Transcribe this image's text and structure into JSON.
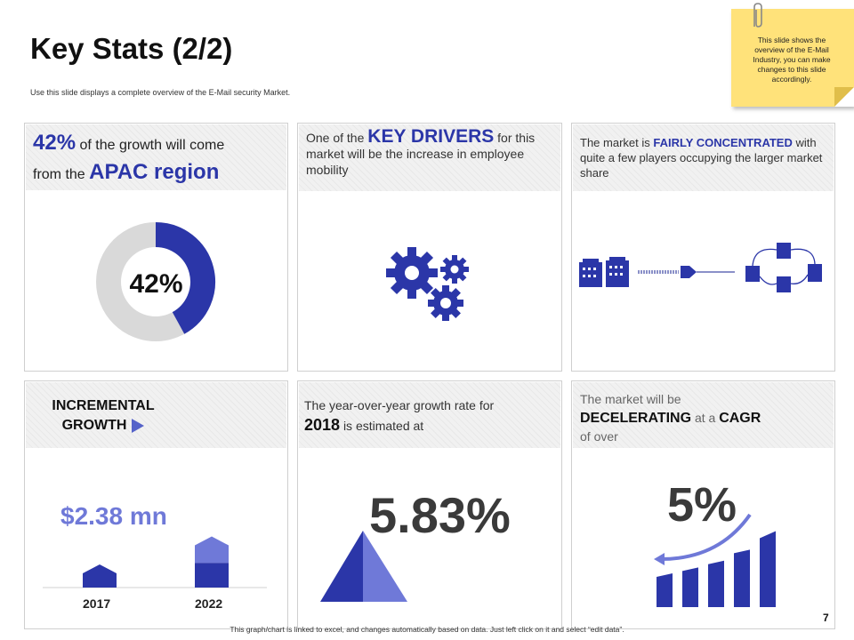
{
  "slide": {
    "title": "Key Stats (2/2)",
    "subtitle": "Use this slide displays a complete overview of the E-Mail security Market.",
    "note": "This slide shows the overview of the E-Mail Industry, you can make changes to this slide accordingly.",
    "footer": "This graph/chart is linked to excel, and changes automatically based on data. Just left click on it and select “edit data”.",
    "page_number": "7"
  },
  "colors": {
    "primary": "#2b36a8",
    "light": "#6f79d8",
    "gray": "#d9d9d9"
  },
  "card1": {
    "pct": "42%",
    "line1": "of the growth will come",
    "line2_prefix": "from the",
    "region": "APAC region",
    "donut_label": "42%",
    "donut_value": 42
  },
  "card2": {
    "prefix": "One of the",
    "highlight": "KEY DRIVERS",
    "rest": "for this market will be the increase in employee mobility",
    "icon": "gears-icon"
  },
  "card3": {
    "prefix": "The market is",
    "highlight": "FAIRLY CONCENTRATED",
    "rest": "with quite a few players occupying the larger market share",
    "icon": "buildings-network-icon"
  },
  "card4": {
    "line1": "INCREMENTAL",
    "line2": "GROWTH",
    "amount": "$2.38 mn",
    "years": [
      "2017",
      "2022"
    ],
    "bar_values": [
      52,
      115
    ],
    "increment_value": 57
  },
  "card5": {
    "line": "The year-over-year growth rate for",
    "year": "2018",
    "rest": "is estimated at",
    "value": "5.83%"
  },
  "card6": {
    "line1": "The market will be",
    "highlight1": "DECELERATING",
    "mid": "at a",
    "highlight2": "CAGR",
    "line3": "of over",
    "value": "5%",
    "bar_levels": [
      40,
      47,
      55,
      68,
      90
    ]
  }
}
